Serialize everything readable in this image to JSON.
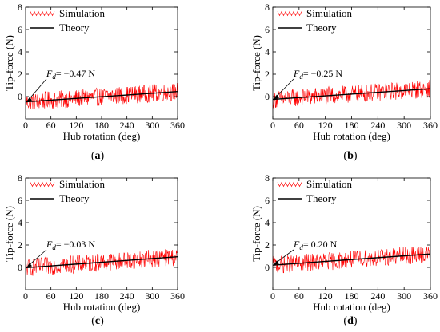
{
  "chart_data": [
    {
      "type": "line",
      "panel_label": "(a)",
      "panel_letter": "a",
      "xlabel": "Hub rotation (deg)",
      "ylabel": "Tip-force (N)",
      "xlim": [
        0,
        360
      ],
      "ylim": [
        -2,
        8
      ],
      "xticks": [
        0,
        60,
        120,
        180,
        240,
        300,
        360
      ],
      "yticks": [
        0,
        2,
        4,
        6,
        8
      ],
      "legend": {
        "position": "top-left",
        "entries": [
          "Simulation",
          "Theory"
        ]
      },
      "annotation": {
        "text": "= −0.47 N",
        "symbol": "F",
        "subscript": "d",
        "point": [
          0,
          -0.47
        ]
      },
      "series": [
        {
          "name": "Simulation",
          "color": "#ff0000",
          "kind": "noisy",
          "theory_start": -0.47,
          "theory_end": 0.45,
          "amplitude": 0.8
        },
        {
          "name": "Theory",
          "color": "#000000",
          "kind": "linear",
          "start": -0.47,
          "end": 0.45
        }
      ]
    },
    {
      "type": "line",
      "panel_label": "(b)",
      "panel_letter": "b",
      "xlabel": "Hub rotation (deg)",
      "ylabel": "Tip-force (N)",
      "xlim": [
        0,
        360
      ],
      "ylim": [
        -2,
        8
      ],
      "xticks": [
        0,
        60,
        120,
        180,
        240,
        300,
        360
      ],
      "yticks": [
        0,
        2,
        4,
        6,
        8
      ],
      "legend": {
        "position": "top-left",
        "entries": [
          "Simulation",
          "Theory"
        ]
      },
      "annotation": {
        "text": "= −0.25 N",
        "symbol": "F",
        "subscript": "d",
        "point": [
          0,
          -0.25
        ]
      },
      "series": [
        {
          "name": "Simulation",
          "color": "#ff0000",
          "kind": "noisy",
          "theory_start": -0.25,
          "theory_end": 0.7,
          "amplitude": 0.8
        },
        {
          "name": "Theory",
          "color": "#000000",
          "kind": "linear",
          "start": -0.25,
          "end": 0.7
        }
      ]
    },
    {
      "type": "line",
      "panel_label": "(c)",
      "panel_letter": "c",
      "xlabel": "Hub rotation (deg)",
      "ylabel": "Tip-force (N)",
      "xlim": [
        0,
        360
      ],
      "ylim": [
        -2,
        8
      ],
      "xticks": [
        0,
        60,
        120,
        180,
        240,
        300,
        360
      ],
      "yticks": [
        0,
        2,
        4,
        6,
        8
      ],
      "legend": {
        "position": "top-left",
        "entries": [
          "Simulation",
          "Theory"
        ]
      },
      "annotation": {
        "text": "= −0.03 N",
        "symbol": "F",
        "subscript": "d",
        "point": [
          0,
          -0.03
        ]
      },
      "series": [
        {
          "name": "Simulation",
          "color": "#ff0000",
          "kind": "noisy",
          "theory_start": -0.03,
          "theory_end": 0.95,
          "amplitude": 0.8
        },
        {
          "name": "Theory",
          "color": "#000000",
          "kind": "linear",
          "start": -0.03,
          "end": 0.95
        }
      ]
    },
    {
      "type": "line",
      "panel_label": "(d)",
      "panel_letter": "d",
      "xlabel": "Hub rotation (deg)",
      "ylabel": "Tip-force (N)",
      "xlim": [
        0,
        360
      ],
      "ylim": [
        -2,
        8
      ],
      "xticks": [
        0,
        60,
        120,
        180,
        240,
        300,
        360
      ],
      "yticks": [
        0,
        2,
        4,
        6,
        8
      ],
      "legend": {
        "position": "top-left",
        "entries": [
          "Simulation",
          "Theory"
        ]
      },
      "annotation": {
        "text": "= 0.20 N",
        "symbol": "F",
        "subscript": "d",
        "point": [
          0,
          0.2
        ]
      },
      "series": [
        {
          "name": "Simulation",
          "color": "#ff0000",
          "kind": "noisy",
          "theory_start": 0.2,
          "theory_end": 1.2,
          "amplitude": 0.8
        },
        {
          "name": "Theory",
          "color": "#000000",
          "kind": "linear",
          "start": 0.2,
          "end": 1.2
        }
      ]
    }
  ]
}
